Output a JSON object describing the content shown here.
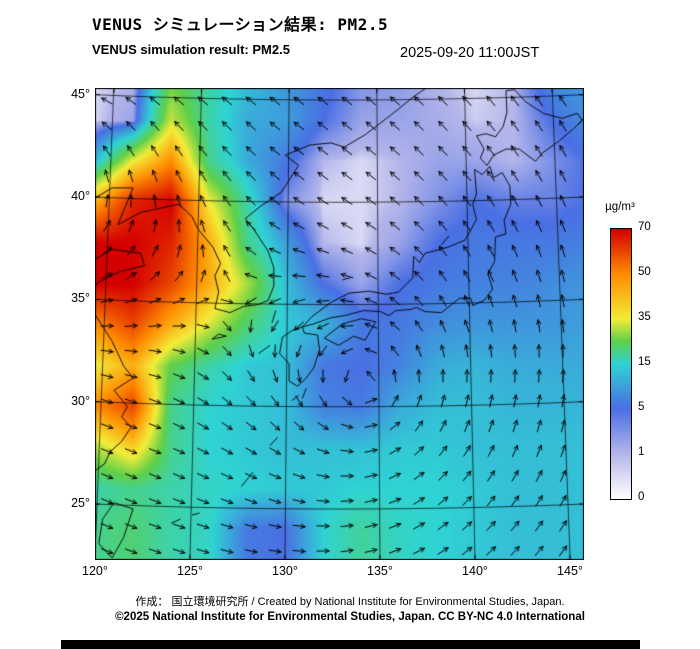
{
  "header": {
    "title_jp": "VENUS シミュレーション結果: PM2.5",
    "title_en": "VENUS simulation result: PM2.5",
    "datetime": "2025-09-20 11:00JST"
  },
  "footer": {
    "credit": "作成： 国立環境研究所 / Created by National Institute for Environmental Studies, Japan.",
    "license": "©2025 National Institute for Environmental Studies, Japan. CC BY-NC 4.0 International"
  },
  "chart_data": {
    "type": "heatmap",
    "title": "VENUS simulation result: PM2.5",
    "pollutant": "PM2.5",
    "datetime": "2025-09-20 11:00JST",
    "unit": "µg/m³",
    "projection": "approximate conic over East Asia",
    "extent": {
      "lon_min": 120,
      "lon_max": 145.7,
      "lat_min": 22.5,
      "lat_max": 45.587
    },
    "lat_ticks": [
      {
        "value": 45,
        "label": "45°"
      },
      {
        "value": 40,
        "label": "40°"
      },
      {
        "value": 35,
        "label": "35°"
      },
      {
        "value": 30,
        "label": "30°"
      },
      {
        "value": 25,
        "label": "25°"
      }
    ],
    "lon_ticks": [
      {
        "value": 120,
        "label": "120°"
      },
      {
        "value": 125,
        "label": "125°"
      },
      {
        "value": 130,
        "label": "130°"
      },
      {
        "value": 135,
        "label": "135°"
      },
      {
        "value": 140,
        "label": "140°"
      },
      {
        "value": 145,
        "label": "145°"
      }
    ],
    "colorbar": {
      "title": "µg/m³",
      "tick_values": [
        0,
        1,
        5,
        15,
        35,
        50,
        70
      ],
      "tick_labels": [
        "0",
        "1",
        "5",
        "15",
        "35",
        "50",
        "70"
      ],
      "stops": [
        {
          "value": 0,
          "color": "#ffffff"
        },
        {
          "value": 1,
          "color": "#b4b6ea"
        },
        {
          "value": 5,
          "color": "#4a6fe3"
        },
        {
          "value": 15,
          "color": "#2fd3d3"
        },
        {
          "value": 25,
          "color": "#5ecf4a"
        },
        {
          "value": 35,
          "color": "#f3ec38"
        },
        {
          "value": 50,
          "color": "#ff8c00"
        },
        {
          "value": 70,
          "color": "#d40000"
        }
      ]
    },
    "field": {
      "lons": [
        120,
        122,
        124,
        126,
        128,
        130,
        132,
        134,
        136,
        138,
        140,
        142,
        144,
        146
      ],
      "lats": [
        46,
        44,
        42,
        40,
        38,
        36,
        34,
        32,
        30,
        28,
        26,
        24
      ],
      "values_ugm3": [
        [
          0.5,
          1,
          25,
          18,
          13,
          9,
          6,
          3,
          2.5,
          1,
          0.5,
          1,
          8,
          10
        ],
        [
          0.5,
          2,
          32,
          18,
          11,
          10,
          5,
          2,
          2,
          1.5,
          0.7,
          1,
          5,
          8
        ],
        [
          12,
          35,
          50,
          20,
          11,
          6,
          1,
          0.5,
          1,
          2,
          2,
          1,
          3,
          5
        ],
        [
          45,
          65,
          70,
          35,
          18,
          3,
          0.5,
          0.5,
          1,
          3,
          5,
          4,
          4,
          5
        ],
        [
          70,
          70,
          65,
          45,
          20,
          10,
          1,
          0.5,
          2,
          5,
          6,
          6,
          6,
          7
        ],
        [
          70,
          70,
          60,
          45,
          30,
          13,
          5,
          2,
          5,
          6,
          7,
          7,
          8,
          9
        ],
        [
          50,
          60,
          45,
          33,
          22,
          14,
          12,
          6,
          6,
          8,
          9,
          9,
          9,
          10
        ],
        [
          35,
          45,
          25,
          18,
          14,
          13,
          6,
          5,
          7,
          11,
          12,
          11,
          11,
          11
        ],
        [
          50,
          60,
          20,
          15,
          14,
          13,
          7,
          6,
          11,
          13,
          13,
          12,
          12,
          12
        ],
        [
          30,
          40,
          20,
          15,
          14,
          13,
          13,
          13,
          14,
          14,
          13,
          13,
          13,
          13
        ],
        [
          18,
          20,
          18,
          16,
          15,
          14,
          14,
          15,
          15,
          15,
          14,
          13,
          13,
          13
        ],
        [
          20,
          22,
          18,
          16,
          6,
          5,
          15,
          19,
          16,
          15,
          14,
          13,
          13,
          13
        ]
      ]
    },
    "wind": {
      "style": "arrows",
      "arrow_color": "#000000",
      "vortices": [
        {
          "lon": 117,
          "lat": 41,
          "strength": 1.3
        },
        {
          "lon": 134.5,
          "lat": 31,
          "strength": 1.0
        }
      ]
    },
    "graticule_color": "#000000",
    "coastline_color": "#000000",
    "coastlines": [
      {
        "name": "honshu",
        "points": [
          [
            130.9,
            33.9
          ],
          [
            131.5,
            34.05
          ],
          [
            132.4,
            34.35
          ],
          [
            133.1,
            34.45
          ],
          [
            134.1,
            34.7
          ],
          [
            135.0,
            34.65
          ],
          [
            135.45,
            34.45
          ],
          [
            135.8,
            34.7
          ],
          [
            136.55,
            34.75
          ],
          [
            136.9,
            34.85
          ],
          [
            137.35,
            34.65
          ],
          [
            138.2,
            34.6
          ],
          [
            138.75,
            35.0
          ],
          [
            139.15,
            35.3
          ],
          [
            139.75,
            35.3
          ],
          [
            139.85,
            34.95
          ],
          [
            140.45,
            35.2
          ],
          [
            140.9,
            35.75
          ],
          [
            140.65,
            36.5
          ],
          [
            141.0,
            37.1
          ],
          [
            141.05,
            38.3
          ],
          [
            141.6,
            38.45
          ],
          [
            141.5,
            39.1
          ],
          [
            141.85,
            39.9
          ],
          [
            141.8,
            40.8
          ],
          [
            141.4,
            41.45
          ],
          [
            140.95,
            41.2
          ],
          [
            140.75,
            41.75
          ],
          [
            140.35,
            41.35
          ],
          [
            139.95,
            41.6
          ],
          [
            140.05,
            40.4
          ],
          [
            139.85,
            39.9
          ],
          [
            140.05,
            39.15
          ],
          [
            139.45,
            38.15
          ],
          [
            138.55,
            37.8
          ],
          [
            137.35,
            37.5
          ],
          [
            137.05,
            37.05
          ],
          [
            136.75,
            37.35
          ],
          [
            136.7,
            36.3
          ],
          [
            135.95,
            35.6
          ],
          [
            135.3,
            35.5
          ],
          [
            134.4,
            35.65
          ],
          [
            133.35,
            35.55
          ],
          [
            132.4,
            35.1
          ],
          [
            131.4,
            34.4
          ],
          [
            130.9,
            33.9
          ]
        ]
      },
      {
        "name": "hokkaido",
        "points": [
          [
            140.6,
            41.8
          ],
          [
            140.25,
            42.15
          ],
          [
            140.45,
            42.6
          ],
          [
            140.05,
            43.25
          ],
          [
            140.55,
            43.35
          ],
          [
            141.05,
            43.2
          ],
          [
            141.45,
            43.7
          ],
          [
            141.65,
            44.4
          ],
          [
            141.6,
            45.45
          ],
          [
            142.05,
            45.5
          ],
          [
            142.65,
            44.9
          ],
          [
            143.55,
            44.35
          ],
          [
            144.55,
            44.1
          ],
          [
            145.35,
            44.35
          ],
          [
            145.6,
            44.0
          ],
          [
            145.15,
            43.6
          ],
          [
            144.4,
            43.0
          ],
          [
            143.5,
            42.4
          ],
          [
            143.15,
            42.0
          ],
          [
            142.3,
            42.6
          ],
          [
            141.6,
            42.6
          ],
          [
            140.95,
            42.3
          ],
          [
            140.6,
            41.8
          ]
        ]
      },
      {
        "name": "kyushu",
        "points": [
          [
            130.9,
            33.9
          ],
          [
            130.4,
            33.75
          ],
          [
            129.85,
            33.4
          ],
          [
            129.7,
            32.6
          ],
          [
            130.2,
            32.1
          ],
          [
            130.2,
            31.25
          ],
          [
            130.65,
            31.0
          ],
          [
            131.1,
            31.4
          ],
          [
            131.5,
            31.9
          ],
          [
            131.8,
            32.8
          ],
          [
            131.7,
            33.5
          ],
          [
            131.0,
            33.6
          ],
          [
            130.9,
            33.9
          ]
        ]
      },
      {
        "name": "shikoku",
        "points": [
          [
            132.05,
            33.35
          ],
          [
            132.8,
            33.0
          ],
          [
            133.6,
            33.45
          ],
          [
            134.2,
            33.25
          ],
          [
            134.75,
            34.15
          ],
          [
            134.0,
            34.3
          ],
          [
            133.0,
            34.05
          ],
          [
            132.05,
            33.35
          ]
        ]
      },
      {
        "name": "korea",
        "points": [
          [
            124.4,
            39.9
          ],
          [
            125.1,
            39.3
          ],
          [
            125.4,
            38.7
          ],
          [
            126.2,
            37.8
          ],
          [
            126.6,
            37.0
          ],
          [
            126.3,
            36.4
          ],
          [
            126.5,
            35.6
          ],
          [
            126.3,
            34.8
          ],
          [
            127.1,
            34.6
          ],
          [
            127.8,
            34.9
          ],
          [
            128.6,
            35.0
          ],
          [
            129.1,
            35.2
          ],
          [
            129.4,
            35.9
          ],
          [
            129.4,
            36.8
          ],
          [
            129.1,
            37.6
          ],
          [
            128.4,
            38.6
          ],
          [
            127.9,
            39.2
          ],
          [
            128.7,
            39.8
          ],
          [
            129.8,
            40.5
          ],
          [
            130.7,
            41.8
          ],
          [
            130.0,
            42.3
          ]
        ]
      },
      {
        "name": "primorye-coast",
        "points": [
          [
            130.0,
            42.3
          ],
          [
            131.3,
            42.8
          ],
          [
            132.4,
            42.9
          ],
          [
            133.1,
            42.7
          ],
          [
            134.2,
            43.3
          ],
          [
            135.6,
            44.3
          ],
          [
            136.8,
            45.2
          ],
          [
            137.9,
            45.9
          ]
        ]
      },
      {
        "name": "china-liaoning",
        "points": [
          [
            119.8,
            40.1
          ],
          [
            120.9,
            40.7
          ],
          [
            122.0,
            40.7
          ],
          [
            121.2,
            38.9
          ],
          [
            122.4,
            39.5
          ],
          [
            123.4,
            39.7
          ],
          [
            124.4,
            39.9
          ]
        ]
      },
      {
        "name": "china-shandong",
        "points": [
          [
            119.8,
            37.1
          ],
          [
            120.9,
            37.7
          ],
          [
            122.4,
            37.5
          ],
          [
            122.6,
            36.9
          ],
          [
            121.3,
            36.6
          ],
          [
            120.2,
            36.1
          ],
          [
            119.8,
            35.7
          ]
        ]
      },
      {
        "name": "china-east-coast",
        "points": [
          [
            119.8,
            34.8
          ],
          [
            120.9,
            33.2
          ],
          [
            121.5,
            32.0
          ],
          [
            122.0,
            31.4
          ],
          [
            121.0,
            30.8
          ],
          [
            121.7,
            30.0
          ],
          [
            121.4,
            29.5
          ],
          [
            121.9,
            29.0
          ],
          [
            121.4,
            28.3
          ],
          [
            120.8,
            27.8
          ],
          [
            120.5,
            27.2
          ],
          [
            119.9,
            26.8
          ]
        ]
      },
      {
        "name": "taiwan",
        "points": [
          [
            121.0,
            25.3
          ],
          [
            122.0,
            25.0
          ],
          [
            121.5,
            23.6
          ],
          [
            120.9,
            22.6
          ],
          [
            120.2,
            23.3
          ],
          [
            120.4,
            24.5
          ],
          [
            121.0,
            25.3
          ]
        ]
      },
      {
        "name": "jeju",
        "points": [
          [
            126.15,
            33.3
          ],
          [
            126.9,
            33.45
          ],
          [
            126.5,
            33.55
          ],
          [
            126.15,
            33.3
          ]
        ]
      },
      {
        "name": "tsushima",
        "points": [
          [
            129.3,
            34.1
          ],
          [
            129.5,
            34.7
          ]
        ]
      },
      {
        "name": "sado",
        "points": [
          [
            138.2,
            37.9
          ],
          [
            138.6,
            38.35
          ]
        ]
      },
      {
        "name": "oki",
        "points": [
          [
            133.0,
            36.2
          ],
          [
            133.4,
            36.3
          ]
        ]
      },
      {
        "name": "amami",
        "points": [
          [
            129.2,
            28.1
          ],
          [
            129.6,
            28.5
          ]
        ]
      },
      {
        "name": "okinawa",
        "points": [
          [
            127.7,
            26.1
          ],
          [
            128.3,
            26.8
          ]
        ]
      },
      {
        "name": "miyako",
        "points": [
          [
            125.1,
            24.7
          ],
          [
            125.5,
            24.8
          ]
        ]
      },
      {
        "name": "ishigaki",
        "points": [
          [
            124.0,
            24.3
          ],
          [
            124.5,
            24.5
          ]
        ]
      },
      {
        "name": "yakushima",
        "points": [
          [
            130.35,
            30.3
          ],
          [
            130.7,
            30.55
          ]
        ]
      },
      {
        "name": "tanegashima",
        "points": [
          [
            130.9,
            30.4
          ],
          [
            131.1,
            30.9
          ]
        ]
      },
      {
        "name": "goto",
        "points": [
          [
            128.6,
            32.6
          ],
          [
            129.2,
            33.0
          ]
        ]
      },
      {
        "name": "kunashiri",
        "points": [
          [
            145.4,
            43.8
          ],
          [
            146.0,
            44.4
          ]
        ]
      }
    ]
  }
}
